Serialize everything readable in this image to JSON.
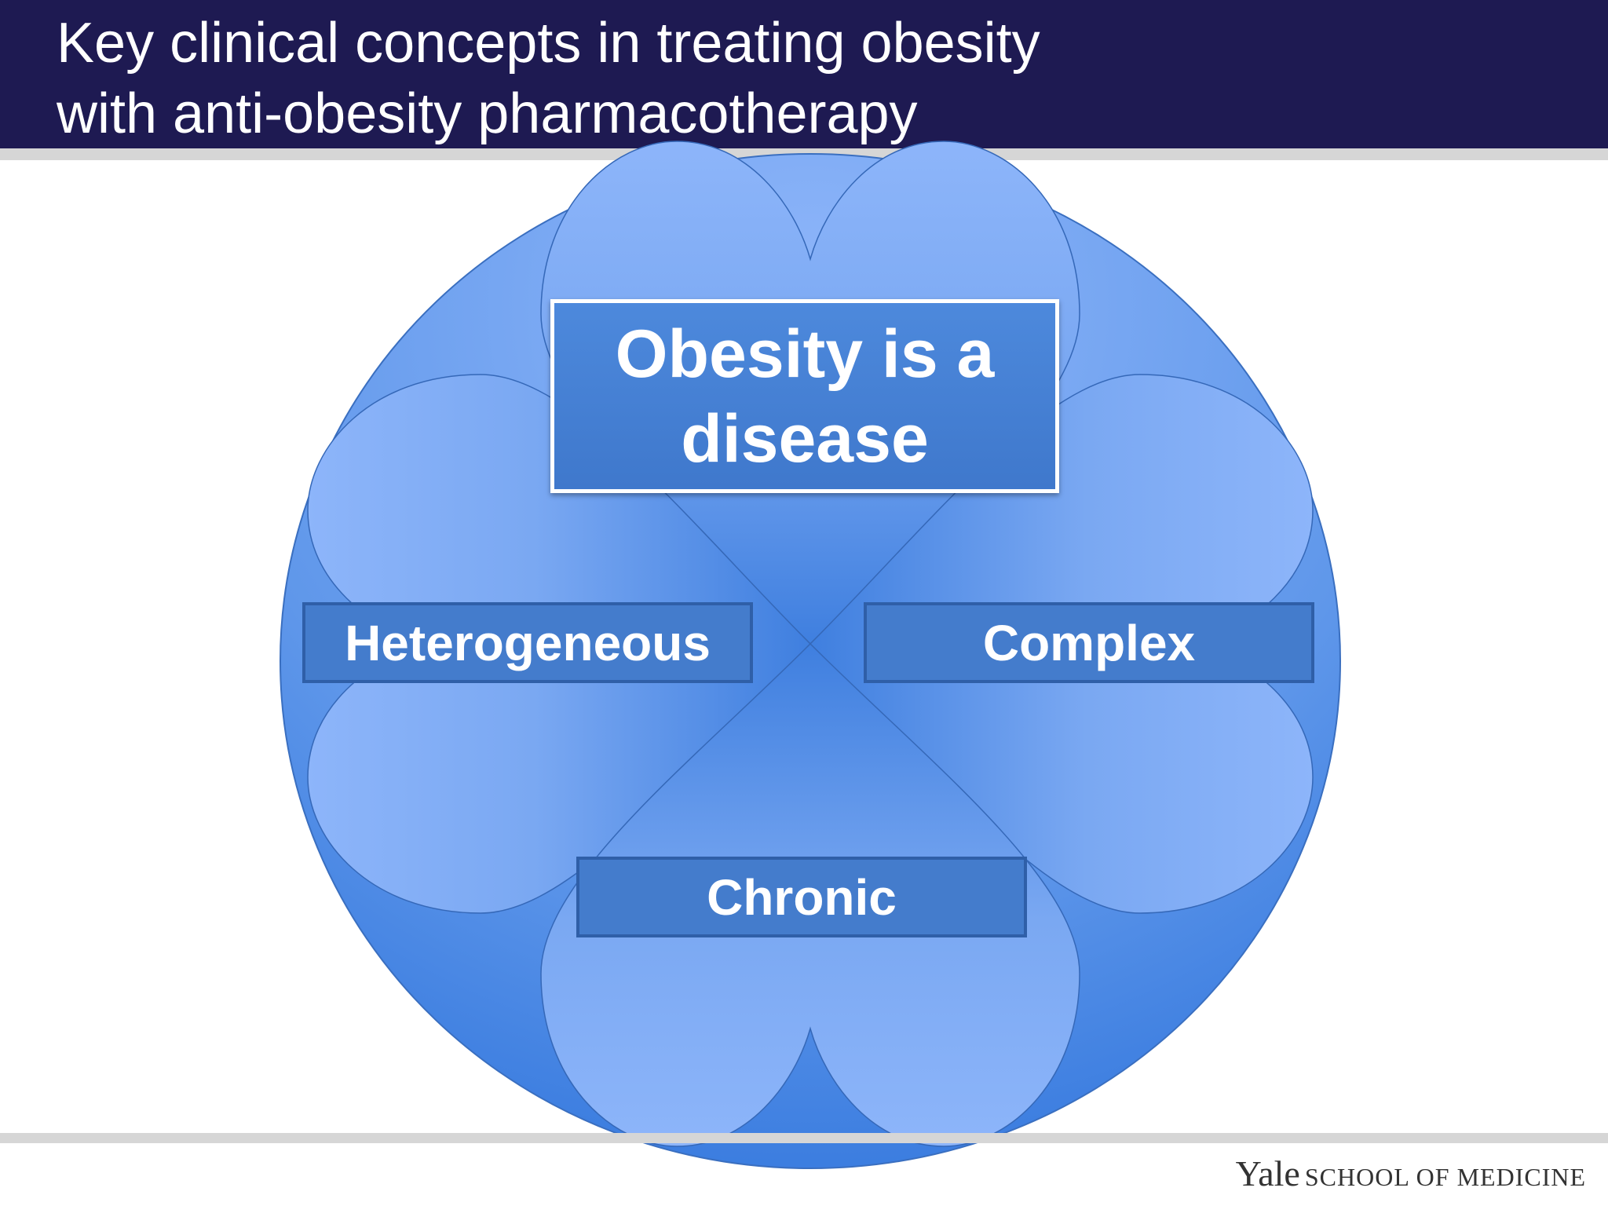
{
  "header": {
    "title": [
      "Key clinical concepts in treating obesity",
      "with anti-obesity pharmacotherapy"
    ]
  },
  "diagram": {
    "center": [
      "Obesity is a",
      "disease"
    ],
    "left": "Heterogeneous",
    "right": "Complex",
    "bottom": "Chronic"
  },
  "footer": {
    "brand": "Yale",
    "unit": "SCHOOL OF MEDICINE"
  }
}
